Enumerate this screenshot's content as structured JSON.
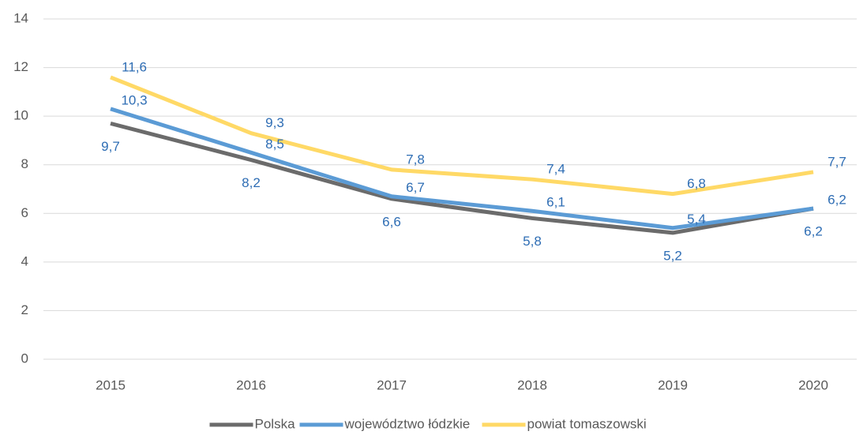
{
  "chart_data": {
    "type": "line",
    "categories": [
      "2015",
      "2016",
      "2017",
      "2018",
      "2019",
      "2020"
    ],
    "series": [
      {
        "name": "Polska",
        "color": "#6b6b6b",
        "values": [
          9.7,
          8.2,
          6.6,
          5.8,
          5.2,
          6.2
        ],
        "value_labels": [
          "9,7",
          "8,2",
          "6,6",
          "5,8",
          "5,2",
          "6,2"
        ]
      },
      {
        "name": "województwo łódzkie",
        "color": "#5b9bd5",
        "values": [
          10.3,
          8.5,
          6.7,
          6.1,
          5.4,
          6.2
        ],
        "value_labels": [
          "10,3",
          "8,5",
          "6,7",
          "6,1",
          "5,4",
          "6,2"
        ]
      },
      {
        "name": "powiat tomaszowski",
        "color": "#ffd966",
        "values": [
          11.6,
          9.3,
          7.8,
          7.4,
          6.8,
          7.7
        ],
        "value_labels": [
          "11,6",
          "9,3",
          "7,8",
          "7,4",
          "6,8",
          "7,7"
        ]
      }
    ],
    "ylim": [
      0,
      14
    ],
    "yticks": [
      0,
      2,
      4,
      6,
      8,
      10,
      12,
      14
    ],
    "grid": true,
    "legend": "bottom"
  }
}
